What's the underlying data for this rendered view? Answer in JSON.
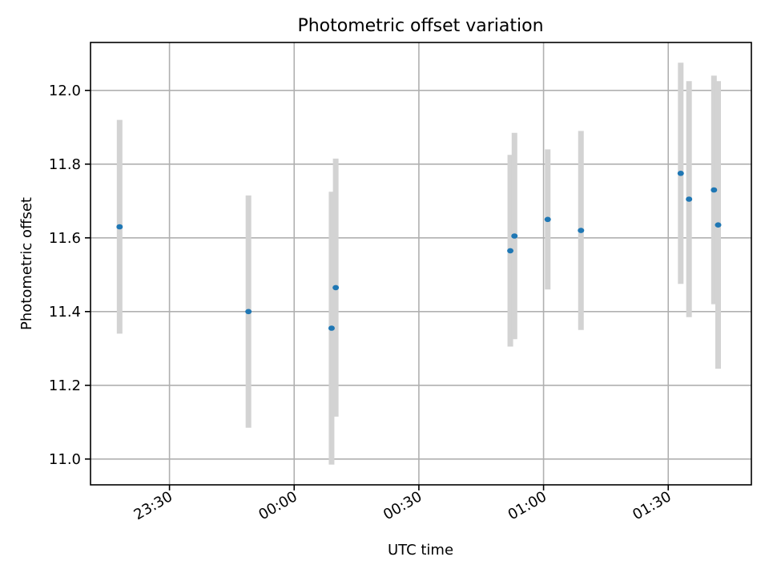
{
  "chart_data": {
    "type": "scatter",
    "title": "Photometric offset variation",
    "xlabel": "UTC time",
    "ylabel": "Photometric offset",
    "x_axis_type": "time",
    "xlim": [
      "23:11",
      "01:50"
    ],
    "ylim": [
      10.93,
      12.13
    ],
    "grid": true,
    "x_ticks": [
      "23:30",
      "00:00",
      "00:30",
      "01:00",
      "01:30"
    ],
    "y_ticks": [
      "11.0",
      "11.2",
      "11.4",
      "11.6",
      "11.8",
      "12.0"
    ],
    "colors": {
      "point": "#1f77b4",
      "errorbar": "#d3d3d3",
      "grid": "#b0b0b0"
    },
    "points": [
      {
        "x": "23:18",
        "y": 11.63,
        "yerr": 0.29
      },
      {
        "x": "23:49",
        "y": 11.4,
        "yerr": 0.315
      },
      {
        "x": "00:09",
        "y": 11.355,
        "yerr": 0.37
      },
      {
        "x": "00:10",
        "y": 11.465,
        "yerr": 0.35
      },
      {
        "x": "00:52",
        "y": 11.565,
        "yerr": 0.26
      },
      {
        "x": "00:53",
        "y": 11.605,
        "yerr": 0.28
      },
      {
        "x": "01:01",
        "y": 11.65,
        "yerr": 0.19
      },
      {
        "x": "01:09",
        "y": 11.62,
        "yerr": 0.27
      },
      {
        "x": "01:33",
        "y": 11.775,
        "yerr": 0.3
      },
      {
        "x": "01:35",
        "y": 11.705,
        "yerr": 0.32
      },
      {
        "x": "01:41",
        "y": 11.73,
        "yerr": 0.31
      },
      {
        "x": "01:42",
        "y": 11.635,
        "yerr": 0.39
      }
    ]
  }
}
